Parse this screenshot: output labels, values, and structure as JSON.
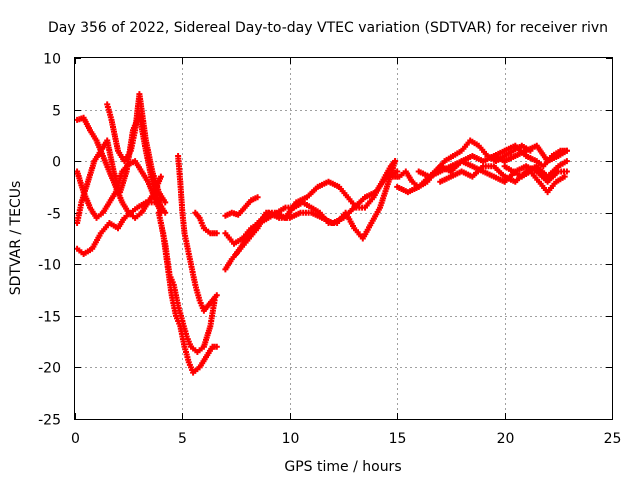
{
  "chart_data": {
    "type": "scatter",
    "title": "Day 356 of 2022, Sidereal Day-to-day VTEC variation (SDTVAR) for receiver rivn",
    "xlabel": "GPS time / hours",
    "ylabel": "SDTVAR / TECUs",
    "xlim": [
      0,
      25
    ],
    "ylim": [
      -25,
      10
    ],
    "x_ticks": [
      0,
      5,
      10,
      15,
      20,
      25
    ],
    "y_ticks": [
      -25,
      -20,
      -15,
      -10,
      -5,
      0,
      5,
      10
    ],
    "x_tick_labels": [
      "0",
      "5",
      "10",
      "15",
      "20",
      "25"
    ],
    "y_tick_labels": [
      "-25",
      "-20",
      "-15",
      "-10",
      "-5",
      "0",
      "5",
      "10"
    ],
    "grid": true,
    "marker": "+",
    "color": "#ff0000",
    "series": [
      {
        "x": [
          0.1,
          0.4,
          0.8,
          1.2,
          1.6,
          2.0,
          2.3,
          2.6,
          2.9,
          3.3,
          3.7,
          4.0
        ],
        "y": [
          -8.5,
          -9.0,
          -8.5,
          -7.0,
          -6.0,
          -6.5,
          -5.5,
          -5.0,
          -4.5,
          -4.0,
          -4.0,
          -3.8
        ]
      },
      {
        "x": [
          0.1,
          0.3,
          0.6,
          0.9,
          1.2,
          1.5,
          1.8,
          2.1,
          2.4,
          2.7,
          3.0,
          3.3,
          3.6,
          3.9,
          4.2
        ],
        "y": [
          -6.0,
          -4.0,
          -2.0,
          0.0,
          1.0,
          2.0,
          -1.0,
          -3.0,
          -1.0,
          3.0,
          4.5,
          1.0,
          -2.0,
          -4.0,
          -5.0
        ]
      },
      {
        "x": [
          0.1,
          0.4,
          0.7,
          1.0,
          1.3,
          1.6,
          1.9,
          2.2,
          2.5,
          2.8,
          3.1,
          3.4,
          3.7,
          4.0
        ],
        "y": [
          4.0,
          4.2,
          3.0,
          2.0,
          0.5,
          -1.0,
          -2.5,
          -4.0,
          -5.0,
          -5.5,
          -5.0,
          -4.0,
          -3.0,
          -1.5
        ]
      },
      {
        "x": [
          0.1,
          0.4,
          0.7,
          1.0,
          1.3,
          1.6,
          1.9,
          2.2,
          2.5,
          2.8,
          3.1,
          3.4,
          3.7,
          4.0
        ],
        "y": [
          -1.0,
          -3.0,
          -4.5,
          -5.5,
          -5.0,
          -4.0,
          -3.0,
          -1.0,
          -0.3,
          0.0,
          -1.0,
          -2.0,
          -3.5,
          -5.0
        ]
      },
      {
        "x": [
          1.5,
          1.7,
          2.0,
          2.3,
          2.6,
          2.8,
          3.0,
          3.3,
          3.6,
          3.9,
          4.2
        ],
        "y": [
          5.5,
          4.0,
          1.0,
          0.0,
          1.0,
          3.0,
          6.5,
          2.0,
          -1.0,
          -3.0,
          -4.0
        ]
      },
      {
        "x": [
          3.9,
          4.1,
          4.3,
          4.5,
          4.7,
          4.9,
          5.1,
          5.3,
          5.5,
          5.8,
          6.1,
          6.4,
          6.6
        ],
        "y": [
          -5.0,
          -7.0,
          -10.0,
          -13.0,
          -15.0,
          -16.0,
          -18.0,
          -19.5,
          -20.5,
          -20.0,
          -19.0,
          -18.0,
          -18.0
        ]
      },
      {
        "x": [
          4.0,
          4.2,
          4.4,
          4.6,
          4.8,
          5.0,
          5.2,
          5.4,
          5.7,
          6.0,
          6.3,
          6.5
        ],
        "y": [
          -6.0,
          -8.0,
          -11.0,
          -12.0,
          -14.0,
          -15.5,
          -17.0,
          -18.0,
          -18.5,
          -18.0,
          -16.0,
          -13.5
        ]
      },
      {
        "x": [
          4.8,
          4.9,
          5.0,
          5.1,
          5.2,
          5.3,
          5.4,
          5.6,
          5.8,
          6.0,
          6.2,
          6.4,
          6.6
        ],
        "y": [
          0.5,
          -2.0,
          -5.0,
          -7.0,
          -8.0,
          -9.0,
          -10.0,
          -12.0,
          -13.5,
          -14.5,
          -14.0,
          -13.5,
          -13.0
        ]
      },
      {
        "x": [
          5.6,
          5.8,
          6.0,
          6.3,
          6.6
        ],
        "y": [
          -5.0,
          -5.5,
          -6.5,
          -7.0,
          -7.0
        ]
      },
      {
        "x": [
          7.0,
          7.3,
          7.6,
          7.9,
          8.2,
          8.5
        ],
        "y": [
          -5.3,
          -5.0,
          -5.2,
          -4.5,
          -3.8,
          -3.5
        ]
      },
      {
        "x": [
          7.0,
          7.3,
          7.7,
          8.1,
          8.5,
          8.9,
          9.3,
          9.8,
          10.3,
          10.8,
          11.3,
          11.8,
          12.3,
          12.7,
          13.1,
          13.5,
          13.9,
          14.3,
          14.7,
          14.9
        ],
        "y": [
          -10.5,
          -9.5,
          -8.5,
          -7.5,
          -6.5,
          -5.0,
          -5.0,
          -5.5,
          -4.0,
          -3.5,
          -2.5,
          -2.0,
          -2.5,
          -3.5,
          -4.5,
          -4.5,
          -3.5,
          -2.0,
          -0.5,
          0.0
        ]
      },
      {
        "x": [
          7.0,
          7.4,
          7.8,
          8.2,
          8.6,
          9.0,
          9.4,
          9.8,
          10.2,
          10.6,
          11.0,
          11.4,
          11.8,
          12.2,
          12.6,
          13.0,
          13.4,
          13.8,
          14.2,
          14.6,
          14.9
        ],
        "y": [
          -7.0,
          -8.0,
          -7.5,
          -6.5,
          -6.0,
          -5.5,
          -5.0,
          -4.5,
          -4.5,
          -4.0,
          -4.5,
          -5.0,
          -6.0,
          -6.0,
          -5.0,
          -6.5,
          -7.5,
          -6.0,
          -4.5,
          -2.0,
          0.0
        ]
      },
      {
        "x": [
          7.5,
          8.0,
          8.5,
          9.0,
          9.5,
          10.0,
          10.5,
          11.0,
          11.5,
          12.0,
          12.5,
          13.0,
          13.5,
          14.0,
          14.5,
          15.0
        ],
        "y": [
          -9.0,
          -7.5,
          -6.0,
          -5.0,
          -5.5,
          -5.5,
          -5.0,
          -5.0,
          -5.5,
          -6.0,
          -5.5,
          -4.5,
          -3.5,
          -3.0,
          -1.5,
          -1.0
        ]
      },
      {
        "x": [
          14.8,
          15.1,
          15.4,
          15.7,
          16.0,
          16.4,
          16.8,
          17.2,
          17.6,
          18.0,
          18.4,
          18.8,
          19.2,
          19.6,
          20.0,
          20.4,
          20.8,
          21.2
        ],
        "y": [
          -1.5,
          -1.5,
          -1.0,
          -2.0,
          -2.5,
          -2.0,
          -1.0,
          0.0,
          0.5,
          1.0,
          2.0,
          1.5,
          0.5,
          0.0,
          0.5,
          1.0,
          1.5,
          1.0
        ]
      },
      {
        "x": [
          15.0,
          15.5,
          16.0,
          16.5,
          17.0,
          17.5,
          18.0,
          18.5,
          19.0,
          19.5,
          20.0,
          20.5,
          21.0,
          21.5,
          22.0,
          22.5,
          22.9
        ],
        "y": [
          -2.5,
          -3.0,
          -2.5,
          -1.5,
          -0.5,
          -1.0,
          0.0,
          -0.5,
          -1.0,
          -1.5,
          -2.0,
          -1.0,
          -0.5,
          -1.0,
          -2.0,
          -1.0,
          -1.0
        ]
      },
      {
        "x": [
          16.0,
          16.5,
          17.0,
          17.5,
          18.0,
          18.5,
          19.0,
          19.5,
          20.0,
          20.5,
          21.0,
          21.5,
          22.0,
          22.5,
          22.9
        ],
        "y": [
          -1.0,
          -1.5,
          -1.0,
          -0.5,
          0.0,
          0.5,
          0.0,
          0.5,
          0.0,
          0.5,
          1.0,
          1.5,
          0.0,
          0.5,
          1.0
        ]
      },
      {
        "x": [
          17.0,
          17.5,
          18.0,
          18.5,
          19.0,
          19.5,
          20.0,
          20.5,
          21.0,
          21.5,
          22.0,
          22.5,
          22.9
        ],
        "y": [
          -2.0,
          -1.5,
          -1.0,
          -1.5,
          -0.5,
          -0.5,
          -1.5,
          -2.0,
          -1.0,
          -0.5,
          -1.5,
          -0.5,
          0.0
        ]
      },
      {
        "x": [
          19.5,
          20.0,
          20.5,
          21.0,
          21.5,
          21.8,
          22.2,
          22.6,
          22.9
        ],
        "y": [
          0.5,
          1.0,
          1.5,
          0.5,
          0.0,
          -0.5,
          0.5,
          1.0,
          1.0
        ]
      },
      {
        "x": [
          20.0,
          20.4,
          20.8,
          21.2,
          21.6,
          22.0,
          22.4,
          22.8
        ],
        "y": [
          -0.5,
          -1.0,
          -1.5,
          -1.0,
          -2.0,
          -3.0,
          -2.0,
          -1.5
        ]
      }
    ]
  }
}
